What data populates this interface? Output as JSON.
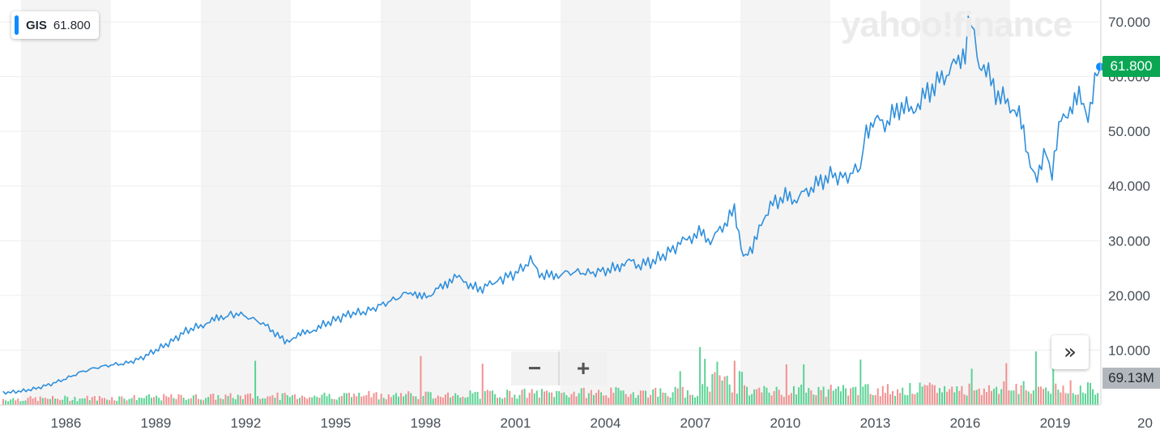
{
  "watermark": "yahoo!finance",
  "legend": {
    "symbol": "GIS",
    "value": "61.800"
  },
  "price_badge": "61.800",
  "volume_badge": "69.13M",
  "zoom": {
    "minus": "−",
    "plus": "+"
  },
  "forward_button": "»",
  "colors": {
    "line": "#2f8fdc",
    "band": "#f4f4f4",
    "vol_up": "#3ecb82",
    "vol_down": "#f07e7e",
    "badge_price": "#0aa654",
    "badge_volume": "#b1b7bd"
  },
  "chart_data": {
    "type": "line",
    "xlim": [
      1984.3,
      2021.0
    ],
    "ylim": [
      0,
      72.5
    ],
    "yticks": [
      "70.000",
      "60.000",
      "50.000",
      "40.000",
      "30.000",
      "20.000",
      "10.000"
    ],
    "xticks": [
      "1986",
      "1989",
      "1992",
      "1995",
      "1998",
      "2001",
      "2004",
      "2007",
      "2010",
      "2013",
      "2016",
      "2019",
      "20"
    ],
    "grid": true,
    "series": [
      {
        "x": [
          1984.4,
          1985.0,
          1985.5,
          1986.0,
          1986.5,
          1987.0,
          1987.5,
          1988.0,
          1988.5,
          1989.0,
          1989.5,
          1990.0,
          1990.5,
          1991.0,
          1991.3,
          1991.6,
          1991.9,
          1992.1,
          1992.5,
          1993.0,
          1993.4,
          1993.8,
          1994.1,
          1994.4,
          1994.7,
          1995.0,
          1995.5,
          1996.0,
          1996.5,
          1997.0,
          1997.5,
          1998.0,
          1998.3,
          1998.6,
          1999.0,
          1999.3,
          1999.7,
          2000.0,
          2000.4,
          2000.8,
          2001.0,
          2001.5,
          2002.0,
          2002.3,
          2002.7,
          2003.0,
          2003.5,
          2004.0,
          2004.5,
          2004.9,
          2005.2,
          2005.6,
          2006.0,
          2006.5,
          2007.0,
          2007.3,
          2007.7,
          2008.0,
          2008.4,
          2008.8,
          2009.1,
          2009.4,
          2009.7,
          2010.0,
          2010.5,
          2010.8,
          2011.2,
          2011.6,
          2012.0,
          2012.5,
          2013.0,
          2013.2,
          2013.5,
          2013.9,
          2014.3,
          2014.7,
          2015.0,
          2015.4,
          2015.8,
          2016.2,
          2016.5,
          2016.7,
          2016.9,
          2017.2,
          2017.6,
          2018.0,
          2018.3,
          2018.6,
          2018.9,
          2019.2,
          2019.4,
          2019.7,
          2020.0,
          2020.3,
          2020.6,
          2020.9,
          2021.0
        ],
        "y": [
          2.2,
          2.5,
          3.0,
          3.8,
          4.8,
          6.0,
          6.8,
          7.3,
          7.6,
          8.5,
          10.0,
          11.5,
          13.5,
          14.5,
          15.2,
          15.8,
          16.4,
          16.7,
          16.2,
          15.1,
          13.5,
          11.6,
          12.3,
          13.0,
          13.6,
          14.4,
          15.6,
          16.7,
          17.0,
          18.2,
          19.4,
          20.8,
          19.5,
          20.0,
          21.5,
          22.8,
          23.5,
          21.5,
          21.3,
          22.5,
          23.0,
          24.0,
          26.3,
          24.0,
          23.5,
          24.0,
          24.3,
          24.1,
          24.6,
          25.0,
          26.5,
          25.5,
          26.0,
          27.5,
          29.5,
          30.5,
          31.5,
          30.0,
          32.5,
          35.5,
          27.5,
          28.0,
          33.5,
          36.5,
          38.0,
          37.5,
          39.0,
          40.5,
          42.0,
          41.5,
          43.5,
          50.5,
          52.0,
          51.5,
          54.5,
          54.0,
          55.5,
          58.0,
          60.0,
          62.5,
          65.0,
          71.5,
          63.5,
          61.0,
          56.5,
          55.0,
          53.0,
          45.0,
          42.0,
          46.0,
          41.5,
          53.0,
          54.0,
          56.0,
          53.0,
          61.5,
          61.8
        ]
      }
    ]
  }
}
